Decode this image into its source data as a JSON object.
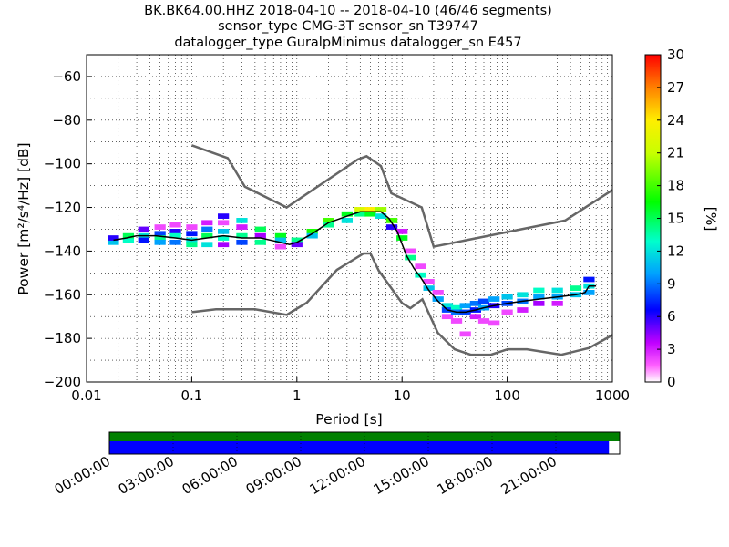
{
  "header": {
    "title_line1": "BK.BK64.00.HHZ   2018-04-10 -- 2018-04-10  (46/46 segments)",
    "title_line2": "sensor_type CMG-3T sensor_sn T39747",
    "title_line3": "datalogger_type GuralpMinimus datalogger_sn E457"
  },
  "chart_data": {
    "type": "heatmap",
    "xlabel": "Period [s]",
    "ylabel": "Power [m²/s⁴/Hz] [dB]",
    "xscale": "log",
    "xlim": [
      0.01,
      1000
    ],
    "ylim": [
      -200,
      -50
    ],
    "x_ticks": [
      {
        "value": 0.01,
        "label": "0.01"
      },
      {
        "value": 0.1,
        "label": "0.1"
      },
      {
        "value": 1,
        "label": "1"
      },
      {
        "value": 10,
        "label": "10"
      },
      {
        "value": 100,
        "label": "100"
      },
      {
        "value": 1000,
        "label": "1000"
      }
    ],
    "y_ticks": [
      {
        "value": -60,
        "label": "−60"
      },
      {
        "value": -80,
        "label": "−80"
      },
      {
        "value": -100,
        "label": "−100"
      },
      {
        "value": -120,
        "label": "−120"
      },
      {
        "value": -140,
        "label": "−140"
      },
      {
        "value": -160,
        "label": "−160"
      },
      {
        "value": -180,
        "label": "−180"
      },
      {
        "value": -200,
        "label": "−200"
      }
    ],
    "grid": true,
    "colorbar": {
      "label": "[%]",
      "range": [
        0,
        30
      ],
      "ticks": [
        "0",
        "3",
        "6",
        "9",
        "12",
        "15",
        "18",
        "21",
        "24",
        "27",
        "30"
      ]
    },
    "noise_models": [
      {
        "name": "NHNM",
        "color": "#666666",
        "points": [
          [
            0.1,
            -91.5
          ],
          [
            0.22,
            -97.4
          ],
          [
            0.32,
            -110.5
          ],
          [
            0.8,
            -120
          ],
          [
            3.8,
            -98
          ],
          [
            4.6,
            -96.5
          ],
          [
            6.3,
            -101
          ],
          [
            7.9,
            -113.5
          ],
          [
            15.4,
            -120
          ],
          [
            20,
            -138
          ],
          [
            354.8,
            -126
          ],
          [
            1000,
            -112
          ]
        ]
      },
      {
        "name": "NLNM",
        "color": "#666666",
        "points": [
          [
            0.1,
            -168
          ],
          [
            0.17,
            -166.7
          ],
          [
            0.4,
            -166.7
          ],
          [
            0.8,
            -169.2
          ],
          [
            1.24,
            -163.7
          ],
          [
            2.4,
            -148.6
          ],
          [
            4.3,
            -141.1
          ],
          [
            5,
            -141.1
          ],
          [
            6,
            -149
          ],
          [
            10,
            -163.8
          ],
          [
            12,
            -166.2
          ],
          [
            15.6,
            -162.1
          ],
          [
            21.9,
            -177.5
          ],
          [
            31.6,
            -185
          ],
          [
            45,
            -187.5
          ],
          [
            70,
            -187.5
          ],
          [
            101,
            -185
          ],
          [
            154,
            -185
          ],
          [
            328,
            -187.5
          ],
          [
            600,
            -184.4
          ],
          [
            1000,
            -178.5
          ]
        ]
      }
    ],
    "mode_line": {
      "color": "#000000",
      "points": [
        [
          0.018,
          -135
        ],
        [
          0.024,
          -134
        ],
        [
          0.03,
          -133
        ],
        [
          0.045,
          -133
        ],
        [
          0.07,
          -134
        ],
        [
          0.1,
          -135
        ],
        [
          0.14,
          -134
        ],
        [
          0.2,
          -133
        ],
        [
          0.3,
          -134
        ],
        [
          0.45,
          -134
        ],
        [
          0.7,
          -136
        ],
        [
          0.85,
          -137
        ],
        [
          1,
          -136
        ],
        [
          1.4,
          -132
        ],
        [
          2,
          -127
        ],
        [
          3,
          -124
        ],
        [
          4,
          -122
        ],
        [
          5,
          -122
        ],
        [
          6.3,
          -122
        ],
        [
          7.5,
          -125
        ],
        [
          9,
          -131
        ],
        [
          11,
          -142
        ],
        [
          13,
          -148
        ],
        [
          15,
          -152
        ],
        [
          18,
          -158
        ],
        [
          22,
          -163
        ],
        [
          27,
          -167
        ],
        [
          33,
          -168
        ],
        [
          40,
          -168
        ],
        [
          50,
          -167
        ],
        [
          60,
          -166
        ],
        [
          75,
          -165
        ],
        [
          100,
          -164
        ],
        [
          140,
          -163
        ],
        [
          200,
          -162
        ],
        [
          300,
          -161
        ],
        [
          450,
          -160
        ],
        [
          550,
          -159
        ],
        [
          600,
          -156
        ],
        [
          700,
          -156
        ]
      ]
    },
    "psd_cells": [
      {
        "period": 0.018,
        "db": -136,
        "pct": 11
      },
      {
        "period": 0.018,
        "db": -134,
        "pct": 6
      },
      {
        "period": 0.025,
        "db": -135,
        "pct": 13
      },
      {
        "period": 0.025,
        "db": -133,
        "pct": 15
      },
      {
        "period": 0.035,
        "db": -130,
        "pct": 5
      },
      {
        "period": 0.035,
        "db": -133,
        "pct": 12
      },
      {
        "period": 0.035,
        "db": -135,
        "pct": 7
      },
      {
        "period": 0.05,
        "db": -129,
        "pct": 2
      },
      {
        "period": 0.05,
        "db": -132,
        "pct": 8
      },
      {
        "period": 0.05,
        "db": -134,
        "pct": 14
      },
      {
        "period": 0.05,
        "db": -136,
        "pct": 10
      },
      {
        "period": 0.07,
        "db": -128,
        "pct": 2
      },
      {
        "period": 0.07,
        "db": -131,
        "pct": 6
      },
      {
        "period": 0.07,
        "db": -133,
        "pct": 13
      },
      {
        "period": 0.07,
        "db": -136,
        "pct": 9
      },
      {
        "period": 0.1,
        "db": -129,
        "pct": 2
      },
      {
        "period": 0.1,
        "db": -132,
        "pct": 7
      },
      {
        "period": 0.1,
        "db": -135,
        "pct": 12
      },
      {
        "period": 0.1,
        "db": -137,
        "pct": 14
      },
      {
        "period": 0.14,
        "db": -127,
        "pct": 3
      },
      {
        "period": 0.14,
        "db": -130,
        "pct": 9
      },
      {
        "period": 0.14,
        "db": -133,
        "pct": 15
      },
      {
        "period": 0.14,
        "db": -137,
        "pct": 12
      },
      {
        "period": 0.2,
        "db": -124,
        "pct": 6
      },
      {
        "period": 0.2,
        "db": -127,
        "pct": 2
      },
      {
        "period": 0.2,
        "db": -131,
        "pct": 11
      },
      {
        "period": 0.2,
        "db": -134,
        "pct": 13
      },
      {
        "period": 0.2,
        "db": -137,
        "pct": 4
      },
      {
        "period": 0.3,
        "db": -126,
        "pct": 12
      },
      {
        "period": 0.3,
        "db": -129,
        "pct": 3
      },
      {
        "period": 0.3,
        "db": -133,
        "pct": 14
      },
      {
        "period": 0.3,
        "db": -136,
        "pct": 8
      },
      {
        "period": 0.45,
        "db": -130,
        "pct": 15
      },
      {
        "period": 0.45,
        "db": -133,
        "pct": 4
      },
      {
        "period": 0.45,
        "db": -136,
        "pct": 14
      },
      {
        "period": 0.7,
        "db": -133,
        "pct": 16
      },
      {
        "period": 0.7,
        "db": -135,
        "pct": 11
      },
      {
        "period": 0.7,
        "db": -138,
        "pct": 2
      },
      {
        "period": 1,
        "db": -135,
        "pct": 14
      },
      {
        "period": 1,
        "db": -137,
        "pct": 5
      },
      {
        "period": 1.4,
        "db": -131,
        "pct": 17
      },
      {
        "period": 1.4,
        "db": -133,
        "pct": 11
      },
      {
        "period": 2,
        "db": -126,
        "pct": 18
      },
      {
        "period": 2,
        "db": -128,
        "pct": 14
      },
      {
        "period": 3,
        "db": -123,
        "pct": 16
      },
      {
        "period": 3,
        "db": -126,
        "pct": 12
      },
      {
        "period": 4,
        "db": -121,
        "pct": 22
      },
      {
        "period": 4,
        "db": -123,
        "pct": 14
      },
      {
        "period": 5,
        "db": -121,
        "pct": 24
      },
      {
        "period": 5,
        "db": -123,
        "pct": 16
      },
      {
        "period": 6.3,
        "db": -121,
        "pct": 20
      },
      {
        "period": 6.3,
        "db": -124,
        "pct": 12
      },
      {
        "period": 8,
        "db": -126,
        "pct": 18
      },
      {
        "period": 8,
        "db": -129,
        "pct": 6
      },
      {
        "period": 10,
        "db": -134,
        "pct": 16
      },
      {
        "period": 10,
        "db": -131,
        "pct": 3
      },
      {
        "period": 12,
        "db": -143,
        "pct": 14
      },
      {
        "period": 12,
        "db": -140,
        "pct": 2
      },
      {
        "period": 15,
        "db": -151,
        "pct": 13
      },
      {
        "period": 15,
        "db": -147,
        "pct": 2
      },
      {
        "period": 18,
        "db": -157,
        "pct": 11
      },
      {
        "period": 18,
        "db": -154,
        "pct": 2
      },
      {
        "period": 22,
        "db": -162,
        "pct": 10
      },
      {
        "period": 22,
        "db": -159,
        "pct": 2
      },
      {
        "period": 27,
        "db": -165,
        "pct": 12
      },
      {
        "period": 27,
        "db": -167,
        "pct": 8
      },
      {
        "period": 27,
        "db": -170,
        "pct": 2
      },
      {
        "period": 33,
        "db": -166,
        "pct": 13
      },
      {
        "period": 33,
        "db": -168,
        "pct": 9
      },
      {
        "period": 33,
        "db": -172,
        "pct": 2
      },
      {
        "period": 40,
        "db": -165,
        "pct": 10
      },
      {
        "period": 40,
        "db": -168,
        "pct": 8
      },
      {
        "period": 40,
        "db": -178,
        "pct": 2
      },
      {
        "period": 50,
        "db": -164,
        "pct": 9
      },
      {
        "period": 50,
        "db": -167,
        "pct": 7
      },
      {
        "period": 50,
        "db": -170,
        "pct": 3
      },
      {
        "period": 60,
        "db": -163,
        "pct": 8
      },
      {
        "period": 60,
        "db": -166,
        "pct": 10
      },
      {
        "period": 60,
        "db": -172,
        "pct": 2
      },
      {
        "period": 75,
        "db": -162,
        "pct": 10
      },
      {
        "period": 75,
        "db": -165,
        "pct": 6
      },
      {
        "period": 75,
        "db": -173,
        "pct": 2
      },
      {
        "period": 100,
        "db": -161,
        "pct": 11
      },
      {
        "period": 100,
        "db": -164,
        "pct": 8
      },
      {
        "period": 100,
        "db": -168,
        "pct": 2
      },
      {
        "period": 140,
        "db": -160,
        "pct": 12
      },
      {
        "period": 140,
        "db": -163,
        "pct": 9
      },
      {
        "period": 140,
        "db": -167,
        "pct": 3
      },
      {
        "period": 200,
        "db": -158,
        "pct": 13
      },
      {
        "period": 200,
        "db": -161,
        "pct": 10
      },
      {
        "period": 200,
        "db": -164,
        "pct": 4
      },
      {
        "period": 300,
        "db": -158,
        "pct": 12
      },
      {
        "period": 300,
        "db": -161,
        "pct": 10
      },
      {
        "period": 300,
        "db": -164,
        "pct": 3
      },
      {
        "period": 450,
        "db": -157,
        "pct": 14
      },
      {
        "period": 450,
        "db": -160,
        "pct": 11
      },
      {
        "period": 600,
        "db": -153,
        "pct": 7
      },
      {
        "period": 600,
        "db": -156,
        "pct": 12
      },
      {
        "period": 600,
        "db": -159,
        "pct": 10
      }
    ]
  },
  "timeline": {
    "ticks": [
      "00:00:00",
      "03:00:00",
      "06:00:00",
      "09:00:00",
      "12:00:00",
      "15:00:00",
      "18:00:00",
      "21:00:00"
    ],
    "coverage_top_color": "#008000",
    "coverage_bottom_color": "#0000ff",
    "coverage_fraction": 0.979
  }
}
